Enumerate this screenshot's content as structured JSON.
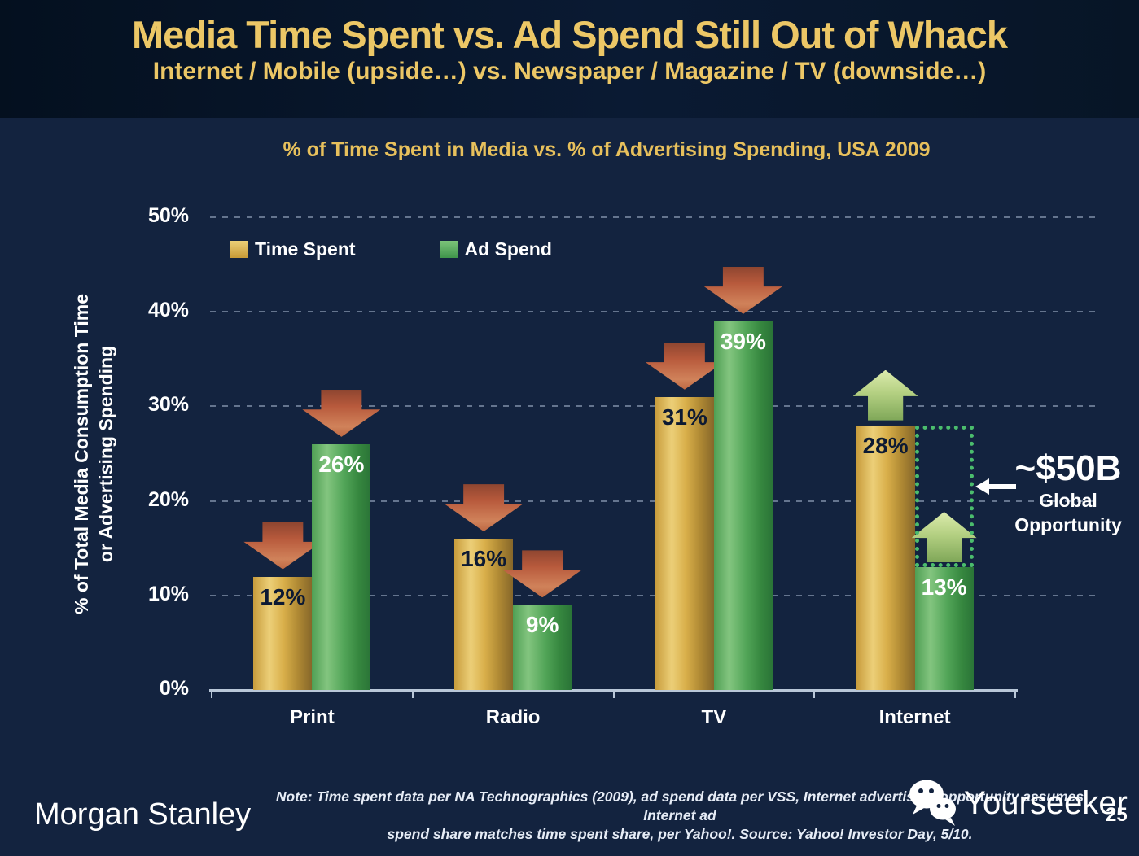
{
  "header": {
    "title": "Media Time Spent vs. Ad Spend Still Out of Whack",
    "subtitle": "Internet / Mobile (upside…) vs. Newspaper / Magazine / TV (downside…)"
  },
  "chart": {
    "title": "% of Time Spent in Media vs. % of Advertising Spending, USA 2009",
    "y_axis_title_line1": "% of Total Media Consumption Time",
    "y_axis_title_line2": "or Advertising Spending"
  },
  "chart_data": {
    "type": "bar",
    "title": "% of Time Spent in Media vs. % of Advertising Spending, USA 2009",
    "categories": [
      "Print",
      "Radio",
      "TV",
      "Internet"
    ],
    "series": [
      {
        "name": "Time Spent",
        "color": "#d9ab45",
        "values": [
          12,
          16,
          31,
          28
        ],
        "value_label_color": "#0d1a33",
        "trend": [
          "down",
          "down",
          "down",
          "up"
        ]
      },
      {
        "name": "Ad Spend",
        "color": "#53a45a",
        "values": [
          26,
          9,
          39,
          13
        ],
        "value_label_color": "#ffffff",
        "trend": [
          "down",
          "down",
          "down",
          "up"
        ]
      }
    ],
    "ylabel": "% of Total Media Consumption Time or Advertising Spending",
    "ylim": [
      0,
      50
    ],
    "y_ticks": [
      "0%",
      "10%",
      "20%",
      "30%",
      "40%",
      "50%"
    ],
    "grid": "horizontal dashed",
    "legend_position": "top-left inside plot",
    "trend_arrow_down_color": "#c2613d",
    "trend_arrow_up_color": "#a8c878",
    "opportunity_box": {
      "category": "Internet",
      "series": "Ad Spend",
      "from_value": 13,
      "to_value": 28,
      "border_color": "#4bbd6d"
    }
  },
  "annotation": {
    "value": "~$50B",
    "line1": "Global",
    "line2": "Opportunity",
    "arrow_icon": "left-arrow"
  },
  "footer": {
    "brand": "Morgan Stanley",
    "note_line1": "Note: Time spent data per NA Technographics (2009), ad spend data per VSS, Internet advertising opportunity assumes Internet ad",
    "note_line2": "spend share matches time spent share, per Yahoo!. Source: Yahoo! Investor Day, 5/10.",
    "watermark": "Yourseeker",
    "page_number": "25"
  },
  "colors": {
    "background": "#13233f",
    "header_background": "#081527",
    "title_gold": "#ecc766",
    "axis": "#b9c7d8"
  }
}
